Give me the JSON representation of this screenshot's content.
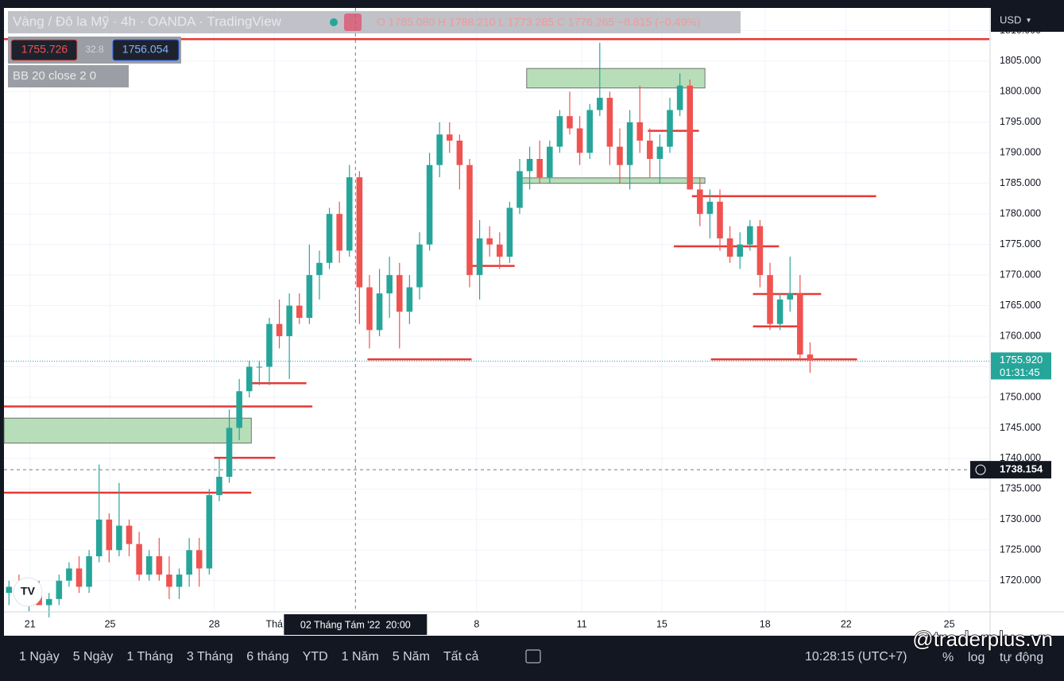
{
  "header": {
    "title": "Vàng / Đô la Mỹ · 4h · OANDA · TradingView",
    "ohlc": "O 1785.080 H 1788.210 L 1773.285 C 1776.265 −8.815 (−0.49%)",
    "sell": "1755.726",
    "spread": "32.8",
    "buy": "1756.054",
    "indicator": "BB 20 close 2 0",
    "currency": "USD"
  },
  "toolbar": {
    "ranges": [
      "1 Ngày",
      "5 Ngày",
      "1 Tháng",
      "3 Tháng",
      "6 tháng",
      "YTD",
      "1 Năm",
      "5 Năm",
      "Tất cả"
    ],
    "clock": "10:28:15 (UTC+7)",
    "percent": "%",
    "log": "log",
    "auto": "tự động",
    "watermark": "@traderplus.vn"
  },
  "chart_data": {
    "type": "candlestick",
    "up_color": "#26a69a",
    "down_color": "#ef5350",
    "line_color": "#e53935",
    "zone_color": "#a5d6a7",
    "open": [
      1718,
      1719,
      1717,
      1718,
      1716,
      1717,
      1720,
      1722,
      1719,
      1724,
      1730,
      1725,
      1729,
      1726,
      1721,
      1724,
      1721,
      1719,
      1721,
      1725,
      1722,
      1734,
      1737,
      1745,
      1751,
      1755,
      1755,
      1762,
      1760,
      1765,
      1763,
      1770,
      1772,
      1780,
      1774,
      1786,
      1768,
      1761,
      1767,
      1770,
      1764,
      1768,
      1775,
      1788,
      1793,
      1792,
      1788,
      1770,
      1776,
      1775,
      1773,
      1781,
      1787,
      1789,
      1786,
      1791,
      1796,
      1794,
      1790,
      1797,
      1799,
      1791,
      1788,
      1795,
      1792,
      1789,
      1791,
      1797,
      1801,
      1784,
      1780,
      1782,
      1776,
      1773,
      1775,
      1778,
      1770,
      1762,
      1766,
      1767,
      1757
    ],
    "high": [
      1720,
      1721,
      1719,
      1720,
      1718,
      1721,
      1723,
      1724,
      1725,
      1739,
      1731,
      1736,
      1730,
      1728,
      1725,
      1727,
      1724,
      1722,
      1727,
      1727,
      1735,
      1740,
      1748,
      1753,
      1756,
      1756,
      1763,
      1766,
      1767,
      1767,
      1775,
      1774,
      1781,
      1782,
      1788,
      1787,
      1770,
      1771,
      1773,
      1772,
      1770,
      1777,
      1790,
      1795,
      1795,
      1793,
      1789,
      1779,
      1778,
      1777,
      1782,
      1789,
      1791,
      1792,
      1792,
      1797,
      1800,
      1796,
      1798,
      1808,
      1800,
      1794,
      1797,
      1801,
      1794,
      1793,
      1799,
      1803,
      1802,
      1786,
      1784,
      1784,
      1778,
      1777,
      1779,
      1779,
      1772,
      1767,
      1773,
      1770,
      1759
    ],
    "low": [
      1716,
      1717,
      1715,
      1716,
      1714,
      1716,
      1719,
      1718,
      1718,
      1723,
      1723,
      1724,
      1724,
      1720,
      1720,
      1720,
      1717,
      1717,
      1719,
      1719,
      1721,
      1733,
      1736,
      1743,
      1750,
      1752,
      1752,
      1758,
      1753,
      1762,
      1762,
      1766,
      1771,
      1772,
      1773,
      1762,
      1758,
      1760,
      1763,
      1758,
      1762,
      1766,
      1774,
      1786,
      1790,
      1784,
      1768,
      1766,
      1773,
      1771,
      1772,
      1780,
      1784,
      1785,
      1785,
      1790,
      1793,
      1788,
      1789,
      1796,
      1788,
      1785,
      1784,
      1790,
      1786,
      1785,
      1790,
      1796,
      1784,
      1778,
      1776,
      1774,
      1772,
      1771,
      1774,
      1768,
      1761,
      1761,
      1764,
      1756,
      1754
    ],
    "close": [
      1719,
      1717,
      1718,
      1716,
      1717,
      1720,
      1722,
      1719,
      1724,
      1730,
      1725,
      1729,
      1726,
      1721,
      1724,
      1721,
      1719,
      1721,
      1725,
      1722,
      1734,
      1737,
      1745,
      1751,
      1755,
      1755,
      1762,
      1760,
      1765,
      1763,
      1770,
      1772,
      1780,
      1774,
      1786,
      1768,
      1761,
      1767,
      1770,
      1764,
      1768,
      1775,
      1788,
      1793,
      1792,
      1788,
      1770,
      1776,
      1775,
      1773,
      1781,
      1787,
      1789,
      1786,
      1791,
      1796,
      1794,
      1790,
      1797,
      1799,
      1791,
      1788,
      1795,
      1792,
      1789,
      1791,
      1797,
      1801,
      1784,
      1780,
      1782,
      1776,
      1773,
      1775,
      1778,
      1770,
      1762,
      1766,
      1767,
      1757,
      1756
    ],
    "xlim": [
      0,
      98.4
    ],
    "ylim": [
      1714.9,
      1813.7
    ],
    "yticks": [
      {
        "value": 1720,
        "label": "1720.000"
      },
      {
        "value": 1725,
        "label": "1725.000"
      },
      {
        "value": 1730,
        "label": "1730.000"
      },
      {
        "value": 1735,
        "label": "1735.000"
      },
      {
        "value": 1740,
        "label": "1740.000"
      },
      {
        "value": 1745,
        "label": "1745.000"
      },
      {
        "value": 1750,
        "label": "1750.000"
      },
      {
        "value": 1755,
        "label": "1755.000"
      },
      {
        "value": 1760,
        "label": "1760.000"
      },
      {
        "value": 1765,
        "label": "1765.000"
      },
      {
        "value": 1770,
        "label": "1770.000"
      },
      {
        "value": 1775,
        "label": "1775.000"
      },
      {
        "value": 1780,
        "label": "1780.000"
      },
      {
        "value": 1785,
        "label": "1785.000"
      },
      {
        "value": 1790,
        "label": "1790.000"
      },
      {
        "value": 1795,
        "label": "1795.000"
      },
      {
        "value": 1800,
        "label": "1800.000"
      },
      {
        "value": 1805,
        "label": "1805.000"
      },
      {
        "value": 1810,
        "label": "1810.000"
      }
    ],
    "xticks": [
      {
        "value": 2.6,
        "label": "21"
      },
      {
        "value": 10.6,
        "label": "25"
      },
      {
        "value": 21.0,
        "label": "28"
      },
      {
        "value": 27.0,
        "label": "Thá"
      },
      {
        "value": 47.2,
        "label": "8"
      },
      {
        "value": 57.7,
        "label": "11"
      },
      {
        "value": 65.7,
        "label": "15"
      },
      {
        "value": 76.0,
        "label": "18"
      },
      {
        "value": 84.1,
        "label": "22"
      },
      {
        "value": 94.4,
        "label": "25"
      }
    ],
    "grid": true,
    "hlines": [
      {
        "price": 1808.6,
        "x": [
          0,
          98.4
        ]
      },
      {
        "price": 1793.6,
        "x": [
          64.3,
          69.4
        ]
      },
      {
        "price": 1782.9,
        "x": [
          68.7,
          87.1
        ]
      },
      {
        "price": 1774.7,
        "x": [
          66.9,
          77.4
        ]
      },
      {
        "price": 1771.5,
        "x": [
          46.4,
          51.0
        ]
      },
      {
        "price": 1766.9,
        "x": [
          74.8,
          81.6
        ]
      },
      {
        "price": 1761.6,
        "x": [
          74.8,
          79.4
        ]
      },
      {
        "price": 1756.2,
        "x": [
          36.3,
          46.7
        ]
      },
      {
        "price": 1756.2,
        "x": [
          70.6,
          85.2
        ]
      },
      {
        "price": 1752.3,
        "x": [
          24.4,
          30.2
        ]
      },
      {
        "price": 1748.5,
        "x": [
          0,
          30.8
        ]
      },
      {
        "price": 1740.1,
        "x": [
          21.0,
          27.1
        ]
      },
      {
        "price": 1734.4,
        "x": [
          0,
          24.7
        ]
      }
    ],
    "zones": [
      {
        "price": [
          1800.6,
          1803.8
        ],
        "x": [
          52.2,
          70.0
        ]
      },
      {
        "price": [
          1785.0,
          1785.9
        ],
        "x": [
          51.6,
          70.0
        ]
      },
      {
        "price": [
          1742.5,
          1746.6
        ],
        "x": [
          0,
          24.7
        ]
      }
    ],
    "last_price": {
      "value": 1755.92,
      "label": "1755.920"
    },
    "countdown": "01:31:45",
    "crosshair": {
      "price": 1738.154,
      "x": 35.1,
      "date_label": "02 Tháng Tám '22  20:00"
    }
  }
}
